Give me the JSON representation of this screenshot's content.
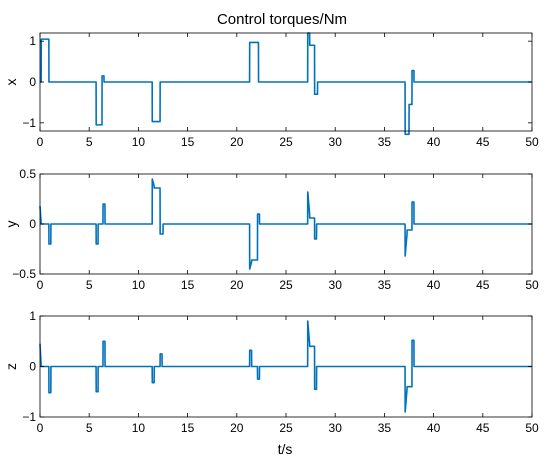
{
  "title": "Control torques/Nm",
  "colors": {
    "line": "#0072bd",
    "axes": "#000000"
  },
  "chart_data": [
    {
      "type": "line",
      "ylabel": "x",
      "xlim": [
        0,
        50
      ],
      "ylim": [
        -1.2,
        1.2
      ],
      "xticks": [
        0,
        5,
        10,
        15,
        20,
        25,
        30,
        35,
        40,
        45,
        50
      ],
      "yticks": [
        -1,
        0,
        1
      ],
      "ytick_labels": [
        "−1",
        "0",
        "1"
      ],
      "grid": false,
      "x": [
        0,
        0.12,
        0.13,
        0.9,
        0.91,
        5.7,
        5.71,
        6.3,
        6.31,
        6.5,
        6.51,
        11.4,
        11.41,
        12.2,
        12.21,
        21.3,
        21.31,
        22.2,
        22.21,
        27.2,
        27.21,
        27.4,
        27.41,
        27.9,
        27.91,
        28.2,
        28.21,
        37.1,
        37.11,
        37.5,
        37.51,
        37.8,
        37.81,
        38.0,
        38.01,
        50
      ],
      "values": [
        0,
        0,
        1.05,
        1.05,
        0,
        0,
        -1.05,
        -1.05,
        0.15,
        0.15,
        0,
        0,
        -0.97,
        -0.97,
        0,
        0,
        0.97,
        0.97,
        0,
        0,
        1.2,
        1.2,
        0.9,
        0.9,
        -0.3,
        -0.3,
        0,
        0,
        -1.28,
        -1.28,
        -0.55,
        -0.55,
        0.28,
        0.28,
        0,
        0
      ]
    },
    {
      "type": "line",
      "ylabel": "y",
      "xlim": [
        0,
        50
      ],
      "ylim": [
        -0.5,
        0.5
      ],
      "xticks": [
        0,
        5,
        10,
        15,
        20,
        25,
        30,
        35,
        40,
        45,
        50
      ],
      "yticks": [
        -0.5,
        0,
        0.5
      ],
      "ytick_labels": [
        "−0.5",
        "0",
        "0.5"
      ],
      "grid": false,
      "x": [
        0,
        0.12,
        0.13,
        0.9,
        0.91,
        1.1,
        1.11,
        5.7,
        5.71,
        5.9,
        5.91,
        6.4,
        6.41,
        6.6,
        6.61,
        11.4,
        11.41,
        11.6,
        11.61,
        12.2,
        12.21,
        12.5,
        12.51,
        21.3,
        21.31,
        21.5,
        21.51,
        22.1,
        22.11,
        22.3,
        22.31,
        27.2,
        27.21,
        27.4,
        27.41,
        27.9,
        27.91,
        28.1,
        28.11,
        37.1,
        37.11,
        37.3,
        37.31,
        37.8,
        37.81,
        38.0,
        38.01,
        50
      ],
      "values": [
        0.18,
        0,
        0,
        0,
        -0.2,
        -0.2,
        0,
        0,
        -0.2,
        -0.2,
        0,
        0,
        0.2,
        0.2,
        0,
        0,
        0.45,
        0.38,
        0.36,
        0.36,
        -0.1,
        -0.1,
        0,
        0,
        -0.45,
        -0.38,
        -0.36,
        -0.36,
        0.1,
        0.1,
        0,
        0,
        0.32,
        0.1,
        0.06,
        0.06,
        -0.15,
        -0.15,
        0,
        0,
        -0.32,
        -0.1,
        -0.06,
        -0.06,
        0.22,
        0.22,
        0,
        0
      ]
    },
    {
      "type": "line",
      "ylabel": "z",
      "xlim": [
        0,
        50
      ],
      "ylim": [
        -1,
        1
      ],
      "xticks": [
        0,
        5,
        10,
        15,
        20,
        25,
        30,
        35,
        40,
        45,
        50
      ],
      "yticks": [
        -1,
        0,
        1
      ],
      "ytick_labels": [
        "−1",
        "0",
        "1"
      ],
      "grid": false,
      "x": [
        0,
        0.12,
        0.13,
        0.9,
        0.91,
        1.1,
        1.11,
        5.7,
        5.71,
        5.9,
        5.91,
        6.4,
        6.41,
        6.6,
        6.61,
        11.4,
        11.41,
        11.6,
        11.61,
        12.2,
        12.21,
        12.4,
        12.41,
        21.3,
        21.31,
        21.5,
        21.51,
        22.1,
        22.11,
        22.3,
        22.31,
        27.2,
        27.21,
        27.4,
        27.41,
        27.9,
        27.91,
        28.1,
        28.11,
        37.1,
        37.11,
        37.3,
        37.31,
        37.8,
        37.81,
        38.0,
        38.01,
        50
      ],
      "values": [
        0.45,
        0,
        0,
        0,
        -0.52,
        -0.52,
        0,
        0,
        -0.5,
        -0.5,
        0,
        0,
        0.5,
        0.5,
        0,
        0,
        -0.32,
        -0.32,
        0,
        0,
        0.25,
        0.25,
        0,
        0,
        0.32,
        0.32,
        0,
        0,
        -0.25,
        -0.25,
        0,
        0,
        0.9,
        0.45,
        0.4,
        0.4,
        -0.45,
        -0.45,
        0,
        0,
        -0.9,
        -0.45,
        -0.4,
        -0.4,
        0.52,
        0.52,
        0,
        0
      ]
    }
  ],
  "xlabel": "t/s"
}
